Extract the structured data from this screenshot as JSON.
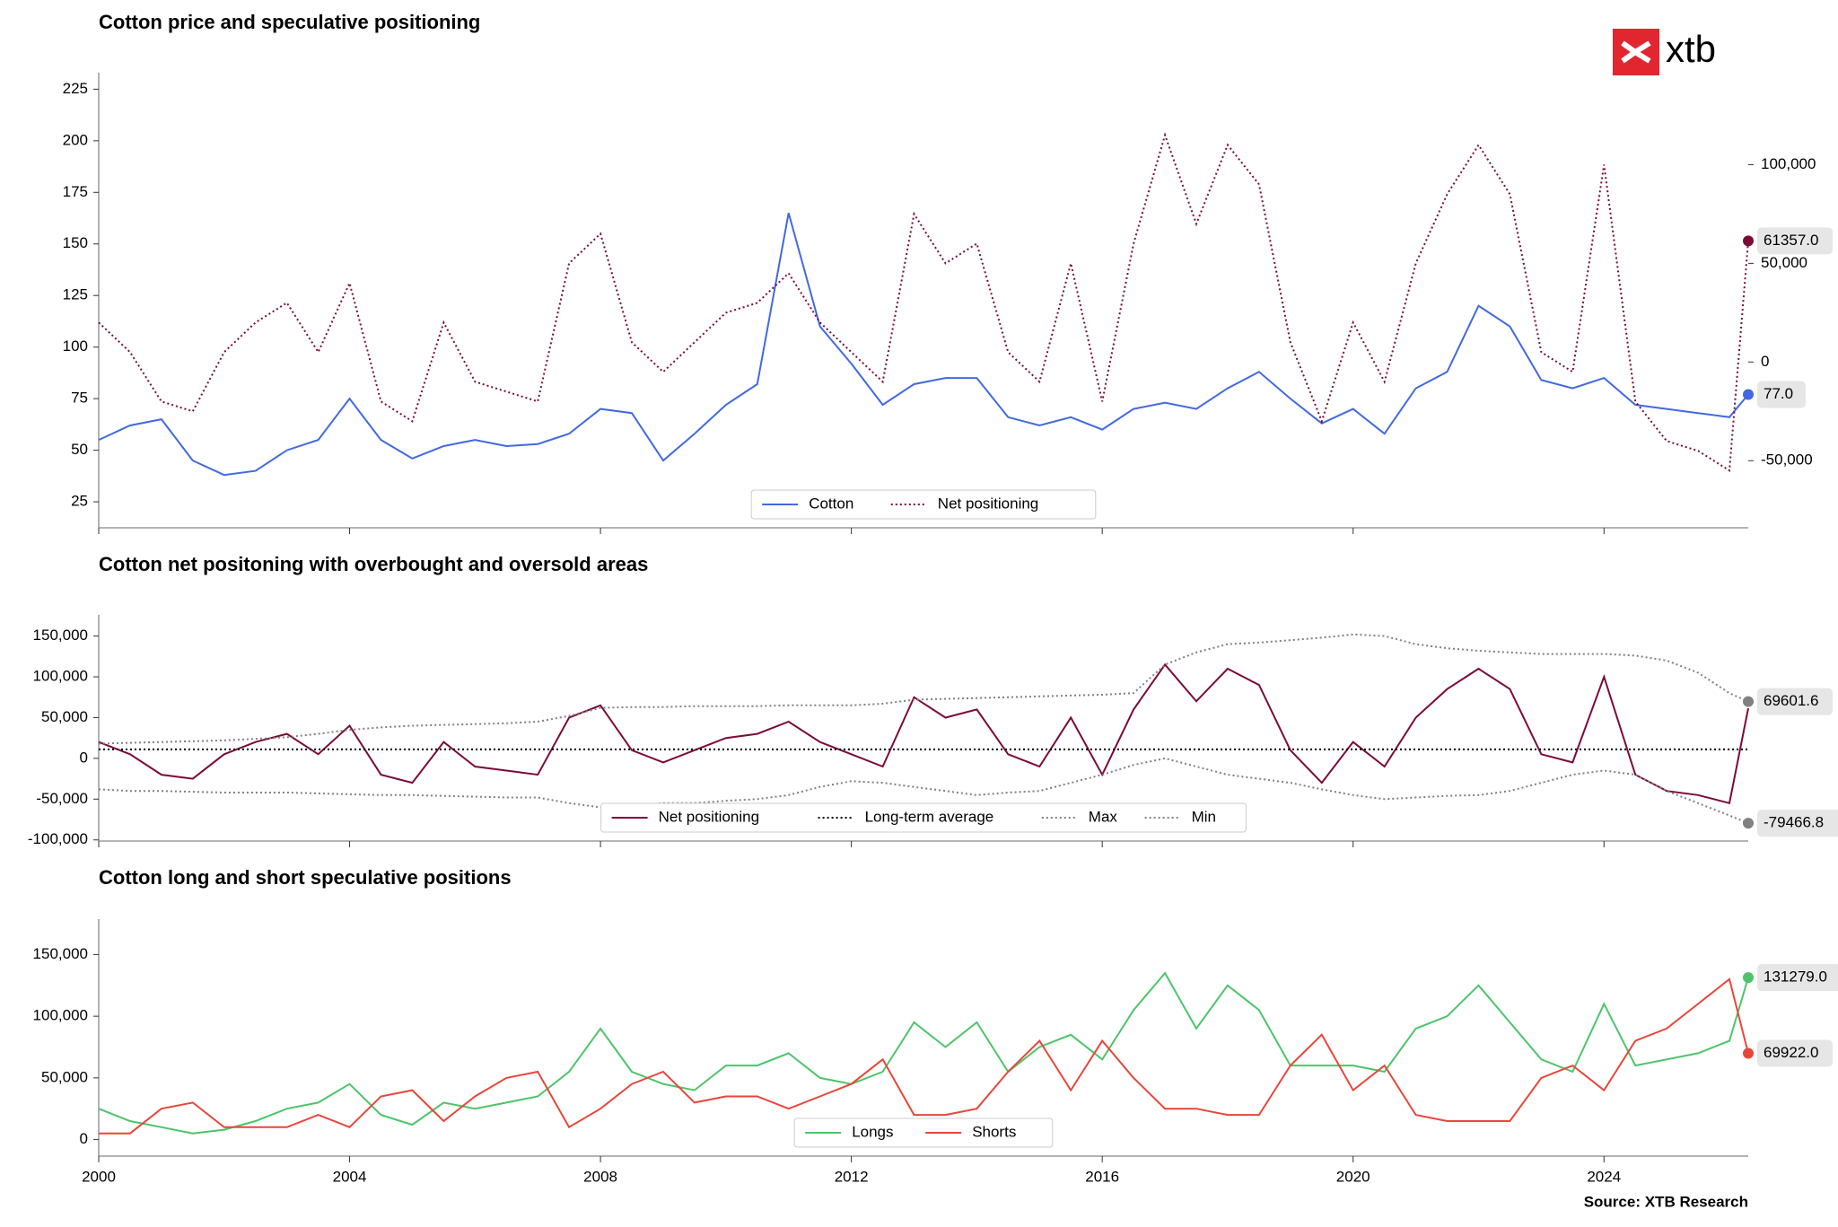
{
  "logo": "xtb",
  "source": "Source: XTB Research",
  "chart_data": [
    {
      "type": "line",
      "title": "Cotton price and speculative positioning",
      "x": [
        2000,
        2000.5,
        2001,
        2001.5,
        2002,
        2002.5,
        2003,
        2003.5,
        2004,
        2004.5,
        2005,
        2005.5,
        2006,
        2006.5,
        2007,
        2007.5,
        2008,
        2008.5,
        2009,
        2009.5,
        2010,
        2010.5,
        2011,
        2011.5,
        2012,
        2012.5,
        2013,
        2013.5,
        2014,
        2014.5,
        2015,
        2015.5,
        2016,
        2016.5,
        2017,
        2017.5,
        2018,
        2018.5,
        2019,
        2019.5,
        2020,
        2020.5,
        2021,
        2021.5,
        2022,
        2022.5,
        2023,
        2023.5,
        2024,
        2024.5,
        2025,
        2025.5,
        2026,
        2026.3
      ],
      "xlim": [
        2000,
        2026.3
      ],
      "xticks": [
        2000,
        2004,
        2008,
        2012,
        2016,
        2020,
        2024
      ],
      "xticklabels": false,
      "ylim": [
        12.4,
        233
      ],
      "yticks": [
        25,
        50,
        75,
        100,
        125,
        150,
        175,
        200,
        225
      ],
      "y2lim": [
        -84000,
        146600
      ],
      "y2ticks": [
        {
          "value": -50000,
          "label": "-50,000"
        },
        0,
        {
          "value": 50000,
          "label": "50,000"
        },
        {
          "value": 100000,
          "label": "100,000"
        }
      ],
      "series": [
        {
          "name": "Cotton",
          "color": "#4169e1",
          "style": "solid",
          "values": [
            55,
            62,
            65,
            45,
            38,
            40,
            50,
            55,
            75,
            55,
            46,
            52,
            55,
            52,
            53,
            58,
            70,
            68,
            45,
            58,
            72,
            82,
            165,
            110,
            92,
            72,
            82,
            85,
            85,
            66,
            62,
            66,
            60,
            70,
            73,
            70,
            80,
            88,
            75,
            63,
            70,
            58,
            80,
            88,
            120,
            110,
            84,
            80,
            85,
            72,
            70,
            68,
            66,
            77
          ],
          "end_label": "77.0"
        },
        {
          "name": "Net positioning",
          "color": "#7b0a3a",
          "style": "dotted",
          "axis": "y2",
          "values": [
            20000,
            5000,
            -20000,
            -25000,
            5000,
            20000,
            30000,
            5000,
            40000,
            -20000,
            -30000,
            20000,
            -10000,
            -15000,
            -20000,
            50000,
            65000,
            10000,
            -5000,
            10000,
            25000,
            30000,
            45000,
            20000,
            5000,
            -10000,
            75000,
            50000,
            60000,
            5000,
            -10000,
            50000,
            -20000,
            60000,
            115000,
            70000,
            110000,
            90000,
            10000,
            -30000,
            20000,
            -10000,
            50000,
            85000,
            110000,
            85000,
            5000,
            -5000,
            100000,
            -20000,
            -40000,
            -45000,
            -55000,
            61357
          ],
          "end_label": "61357.0"
        }
      ]
    },
    {
      "type": "line",
      "title": "Cotton net positoning with overbought and oversold areas",
      "x": [
        2000,
        2000.5,
        2001,
        2001.5,
        2002,
        2002.5,
        2003,
        2003.5,
        2004,
        2004.5,
        2005,
        2005.5,
        2006,
        2006.5,
        2007,
        2007.5,
        2008,
        2008.5,
        2009,
        2009.5,
        2010,
        2010.5,
        2011,
        2011.5,
        2012,
        2012.5,
        2013,
        2013.5,
        2014,
        2014.5,
        2015,
        2015.5,
        2016,
        2016.5,
        2017,
        2017.5,
        2018,
        2018.5,
        2019,
        2019.5,
        2020,
        2020.5,
        2021,
        2021.5,
        2022,
        2022.5,
        2023,
        2023.5,
        2024,
        2024.5,
        2025,
        2025.5,
        2026,
        2026.3
      ],
      "xlim": [
        2000,
        2026.3
      ],
      "xticks": [
        2000,
        2004,
        2008,
        2012,
        2016,
        2020,
        2024
      ],
      "xticklabels": false,
      "ylim": [
        -101400,
        176000
      ],
      "yticks": [
        {
          "value": -100000,
          "label": "-100,000"
        },
        {
          "value": -50000,
          "label": "-50,000"
        },
        0,
        {
          "value": 50000,
          "label": "50,000"
        },
        {
          "value": 100000,
          "label": "100,000"
        },
        {
          "value": 150000,
          "label": "150,000"
        }
      ],
      "series": [
        {
          "name": "Net positioning",
          "color": "#7b0a3a",
          "style": "solid",
          "values": [
            20000,
            5000,
            -20000,
            -25000,
            5000,
            20000,
            30000,
            5000,
            40000,
            -20000,
            -30000,
            20000,
            -10000,
            -15000,
            -20000,
            50000,
            65000,
            10000,
            -5000,
            10000,
            25000,
            30000,
            45000,
            20000,
            5000,
            -10000,
            75000,
            50000,
            60000,
            5000,
            -10000,
            50000,
            -20000,
            60000,
            115000,
            70000,
            110000,
            90000,
            10000,
            -30000,
            20000,
            -10000,
            50000,
            85000,
            110000,
            85000,
            5000,
            -5000,
            100000,
            -20000,
            -40000,
            -45000,
            -55000,
            61357
          ]
        },
        {
          "name": "Long-term average",
          "color": "#000000",
          "style": "dotted",
          "value": 11000
        },
        {
          "name": "Max",
          "color": "#808080",
          "style": "dotted",
          "values": [
            18000,
            19000,
            20000,
            21000,
            22000,
            24000,
            26000,
            30000,
            35000,
            38000,
            40000,
            41000,
            42000,
            43000,
            45000,
            52000,
            62000,
            63000,
            63000,
            64000,
            64000,
            64000,
            65000,
            65000,
            65000,
            67000,
            72000,
            73000,
            74000,
            75000,
            76000,
            77000,
            78000,
            80000,
            115000,
            130000,
            140000,
            142000,
            145000,
            148000,
            152000,
            150000,
            140000,
            135000,
            132000,
            130000,
            128000,
            128000,
            128000,
            126000,
            120000,
            105000,
            80000,
            69601.6
          ],
          "end_label": "69601.6"
        },
        {
          "name": "Min",
          "color": "#808080",
          "style": "dotted",
          "values": [
            -38000,
            -40000,
            -40000,
            -41000,
            -42000,
            -42000,
            -42000,
            -43000,
            -44000,
            -45000,
            -45000,
            -46000,
            -47000,
            -48000,
            -48000,
            -55000,
            -60000,
            -58000,
            -55000,
            -55000,
            -52000,
            -50000,
            -45000,
            -35000,
            -28000,
            -30000,
            -35000,
            -40000,
            -45000,
            -42000,
            -40000,
            -30000,
            -20000,
            -8000,
            0,
            -10000,
            -20000,
            -25000,
            -30000,
            -38000,
            -45000,
            -50000,
            -48000,
            -46000,
            -45000,
            -40000,
            -30000,
            -20000,
            -15000,
            -20000,
            -40000,
            -55000,
            -70000,
            -79466.8
          ],
          "end_label": "-79466.8"
        }
      ]
    },
    {
      "type": "line",
      "title": "Cotton long and short speculative positions",
      "x": [
        2000,
        2000.5,
        2001,
        2001.5,
        2002,
        2002.5,
        2003,
        2003.5,
        2004,
        2004.5,
        2005,
        2005.5,
        2006,
        2006.5,
        2007,
        2007.5,
        2008,
        2008.5,
        2009,
        2009.5,
        2010,
        2010.5,
        2011,
        2011.5,
        2012,
        2012.5,
        2013,
        2013.5,
        2014,
        2014.5,
        2015,
        2015.5,
        2016,
        2016.5,
        2017,
        2017.5,
        2018,
        2018.5,
        2019,
        2019.5,
        2020,
        2020.5,
        2021,
        2021.5,
        2022,
        2022.5,
        2023,
        2023.5,
        2024,
        2024.5,
        2025,
        2025.5,
        2026,
        2026.3
      ],
      "xlim": [
        2000,
        2026.3
      ],
      "xticks": [
        2000,
        2004,
        2008,
        2012,
        2016,
        2020,
        2024
      ],
      "ylim": [
        -13400,
        178700
      ],
      "yticks": [
        0,
        {
          "value": 50000,
          "label": "50,000"
        },
        {
          "value": 100000,
          "label": "100,000"
        },
        {
          "value": 150000,
          "label": "150,000"
        }
      ],
      "series": [
        {
          "name": "Longs",
          "color": "#4cc46a",
          "style": "solid",
          "values": [
            25000,
            15000,
            10000,
            5000,
            8000,
            15000,
            25000,
            30000,
            45000,
            20000,
            12000,
            30000,
            25000,
            30000,
            35000,
            55000,
            90000,
            55000,
            45000,
            40000,
            60000,
            60000,
            70000,
            50000,
            45000,
            55000,
            95000,
            75000,
            95000,
            55000,
            75000,
            85000,
            65000,
            105000,
            135000,
            90000,
            125000,
            105000,
            60000,
            60000,
            60000,
            55000,
            90000,
            100000,
            125000,
            95000,
            65000,
            55000,
            110000,
            60000,
            65000,
            70000,
            80000,
            131279
          ],
          "end_label": "131279.0"
        },
        {
          "name": "Shorts",
          "color": "#e8463a",
          "style": "solid",
          "values": [
            5000,
            5000,
            25000,
            30000,
            10000,
            10000,
            10000,
            20000,
            10000,
            35000,
            40000,
            15000,
            35000,
            50000,
            55000,
            10000,
            25000,
            45000,
            55000,
            30000,
            35000,
            35000,
            25000,
            35000,
            45000,
            65000,
            20000,
            20000,
            25000,
            55000,
            80000,
            40000,
            80000,
            50000,
            25000,
            25000,
            20000,
            20000,
            60000,
            85000,
            40000,
            60000,
            20000,
            15000,
            15000,
            15000,
            50000,
            60000,
            40000,
            80000,
            90000,
            110000,
            130000,
            69922
          ],
          "end_label": "69922.0"
        }
      ]
    }
  ]
}
